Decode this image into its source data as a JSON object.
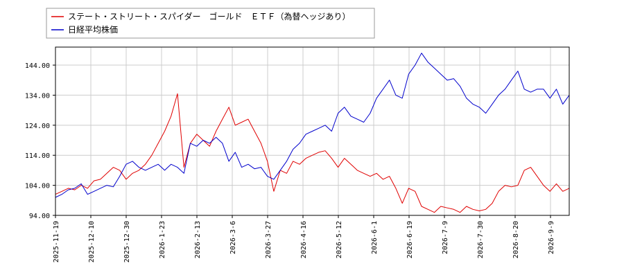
{
  "chart_data": {
    "type": "line",
    "title": "",
    "xlabel": "",
    "ylabel": "",
    "ylim": [
      94.0,
      150.0
    ],
    "yticks": [
      "94.00",
      "104.00",
      "114.00",
      "124.00",
      "134.00",
      "144.00"
    ],
    "xticks": [
      "2025-11-19",
      "2025-12-10",
      "2025-12-30",
      "2026-1-23",
      "2026-2-13",
      "2026-3-6",
      "2026-3-27",
      "2026-4-16",
      "2026-5-12",
      "2026-6-1",
      "2026-6-19",
      "2026-7-9",
      "2026-7-30",
      "2026-8-20",
      "2026-9-9"
    ],
    "grid": true,
    "legend_position": "top-left",
    "series": [
      {
        "name": "ステート・ストリート・スパイダー　ゴールド　ＥＴＦ（為替ヘッジあり）",
        "color": "#e00000",
        "values": [
          101.0,
          102.0,
          103.0,
          102.5,
          104.0,
          103.0,
          105.5,
          106.0,
          108.0,
          110.0,
          109.0,
          106.0,
          108.0,
          109.0,
          111.0,
          114.0,
          118.0,
          122.0,
          127.0,
          134.5,
          110.0,
          118.0,
          121.0,
          119.0,
          117.0,
          122.0,
          126.0,
          130.0,
          124.0,
          125.0,
          126.0,
          122.0,
          118.0,
          112.0,
          102.0,
          109.0,
          108.0,
          112.0,
          111.0,
          113.0,
          114.0,
          115.0,
          115.5,
          113.0,
          110.0,
          113.0,
          111.0,
          109.0,
          108.0,
          107.0,
          108.0,
          106.0,
          107.0,
          103.0,
          98.0,
          103.0,
          102.0,
          97.0,
          96.0,
          95.0,
          97.0,
          96.5,
          96.0,
          95.0,
          97.0,
          96.0,
          95.5,
          96.0,
          98.0,
          102.0,
          104.0,
          103.5,
          104.0,
          109.0,
          110.0,
          107.0,
          104.0,
          102.0,
          104.5,
          102.0,
          103.0
        ]
      },
      {
        "name": "日経平均株価",
        "color": "#0000cc",
        "values": [
          100.0,
          101.0,
          102.5,
          103.0,
          104.5,
          101.0,
          102.0,
          103.0,
          104.0,
          103.5,
          107.0,
          111.0,
          112.0,
          110.0,
          109.0,
          110.0,
          111.0,
          109.0,
          111.0,
          110.0,
          108.0,
          118.0,
          117.0,
          119.0,
          118.0,
          120.0,
          118.0,
          112.0,
          115.0,
          110.0,
          111.0,
          109.5,
          110.0,
          107.0,
          106.0,
          109.0,
          112.0,
          116.0,
          118.0,
          121.0,
          122.0,
          123.0,
          124.0,
          122.0,
          128.0,
          130.0,
          127.0,
          126.0,
          125.0,
          128.0,
          133.0,
          136.0,
          139.0,
          134.0,
          133.0,
          141.0,
          144.0,
          148.0,
          145.0,
          143.0,
          141.0,
          139.0,
          139.5,
          137.0,
          133.0,
          131.0,
          130.0,
          128.0,
          131.0,
          134.0,
          136.0,
          139.0,
          142.0,
          136.0,
          135.0,
          136.0,
          136.0,
          133.0,
          136.0,
          131.0,
          134.0
        ]
      }
    ]
  }
}
